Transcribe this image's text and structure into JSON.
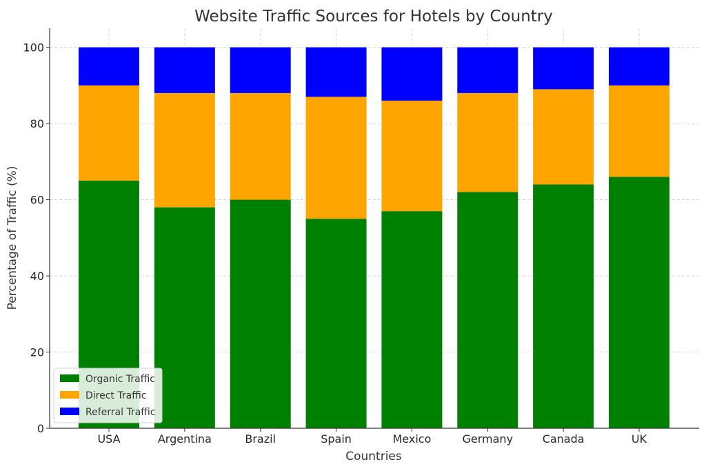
{
  "chart_data": {
    "type": "bar",
    "stacked": true,
    "title": "Website Traffic Sources for Hotels by Country",
    "xlabel": "Countries",
    "ylabel": "Percentage of Traffic (%)",
    "ylim": [
      0,
      105
    ],
    "yticks": [
      0,
      20,
      40,
      60,
      80,
      100
    ],
    "grid": true,
    "legend_position": "lower-left",
    "categories": [
      "USA",
      "Argentina",
      "Brazil",
      "Spain",
      "Mexico",
      "Germany",
      "Canada",
      "UK"
    ],
    "series": [
      {
        "name": "Organic Traffic",
        "color": "#008000",
        "values": [
          65,
          58,
          60,
          55,
          57,
          62,
          64,
          66
        ]
      },
      {
        "name": "Direct Traffic",
        "color": "#FFA500",
        "values": [
          25,
          30,
          28,
          32,
          29,
          26,
          25,
          24
        ]
      },
      {
        "name": "Referral Traffic",
        "color": "#0000FF",
        "values": [
          10,
          12,
          12,
          13,
          14,
          12,
          11,
          10
        ]
      }
    ]
  }
}
